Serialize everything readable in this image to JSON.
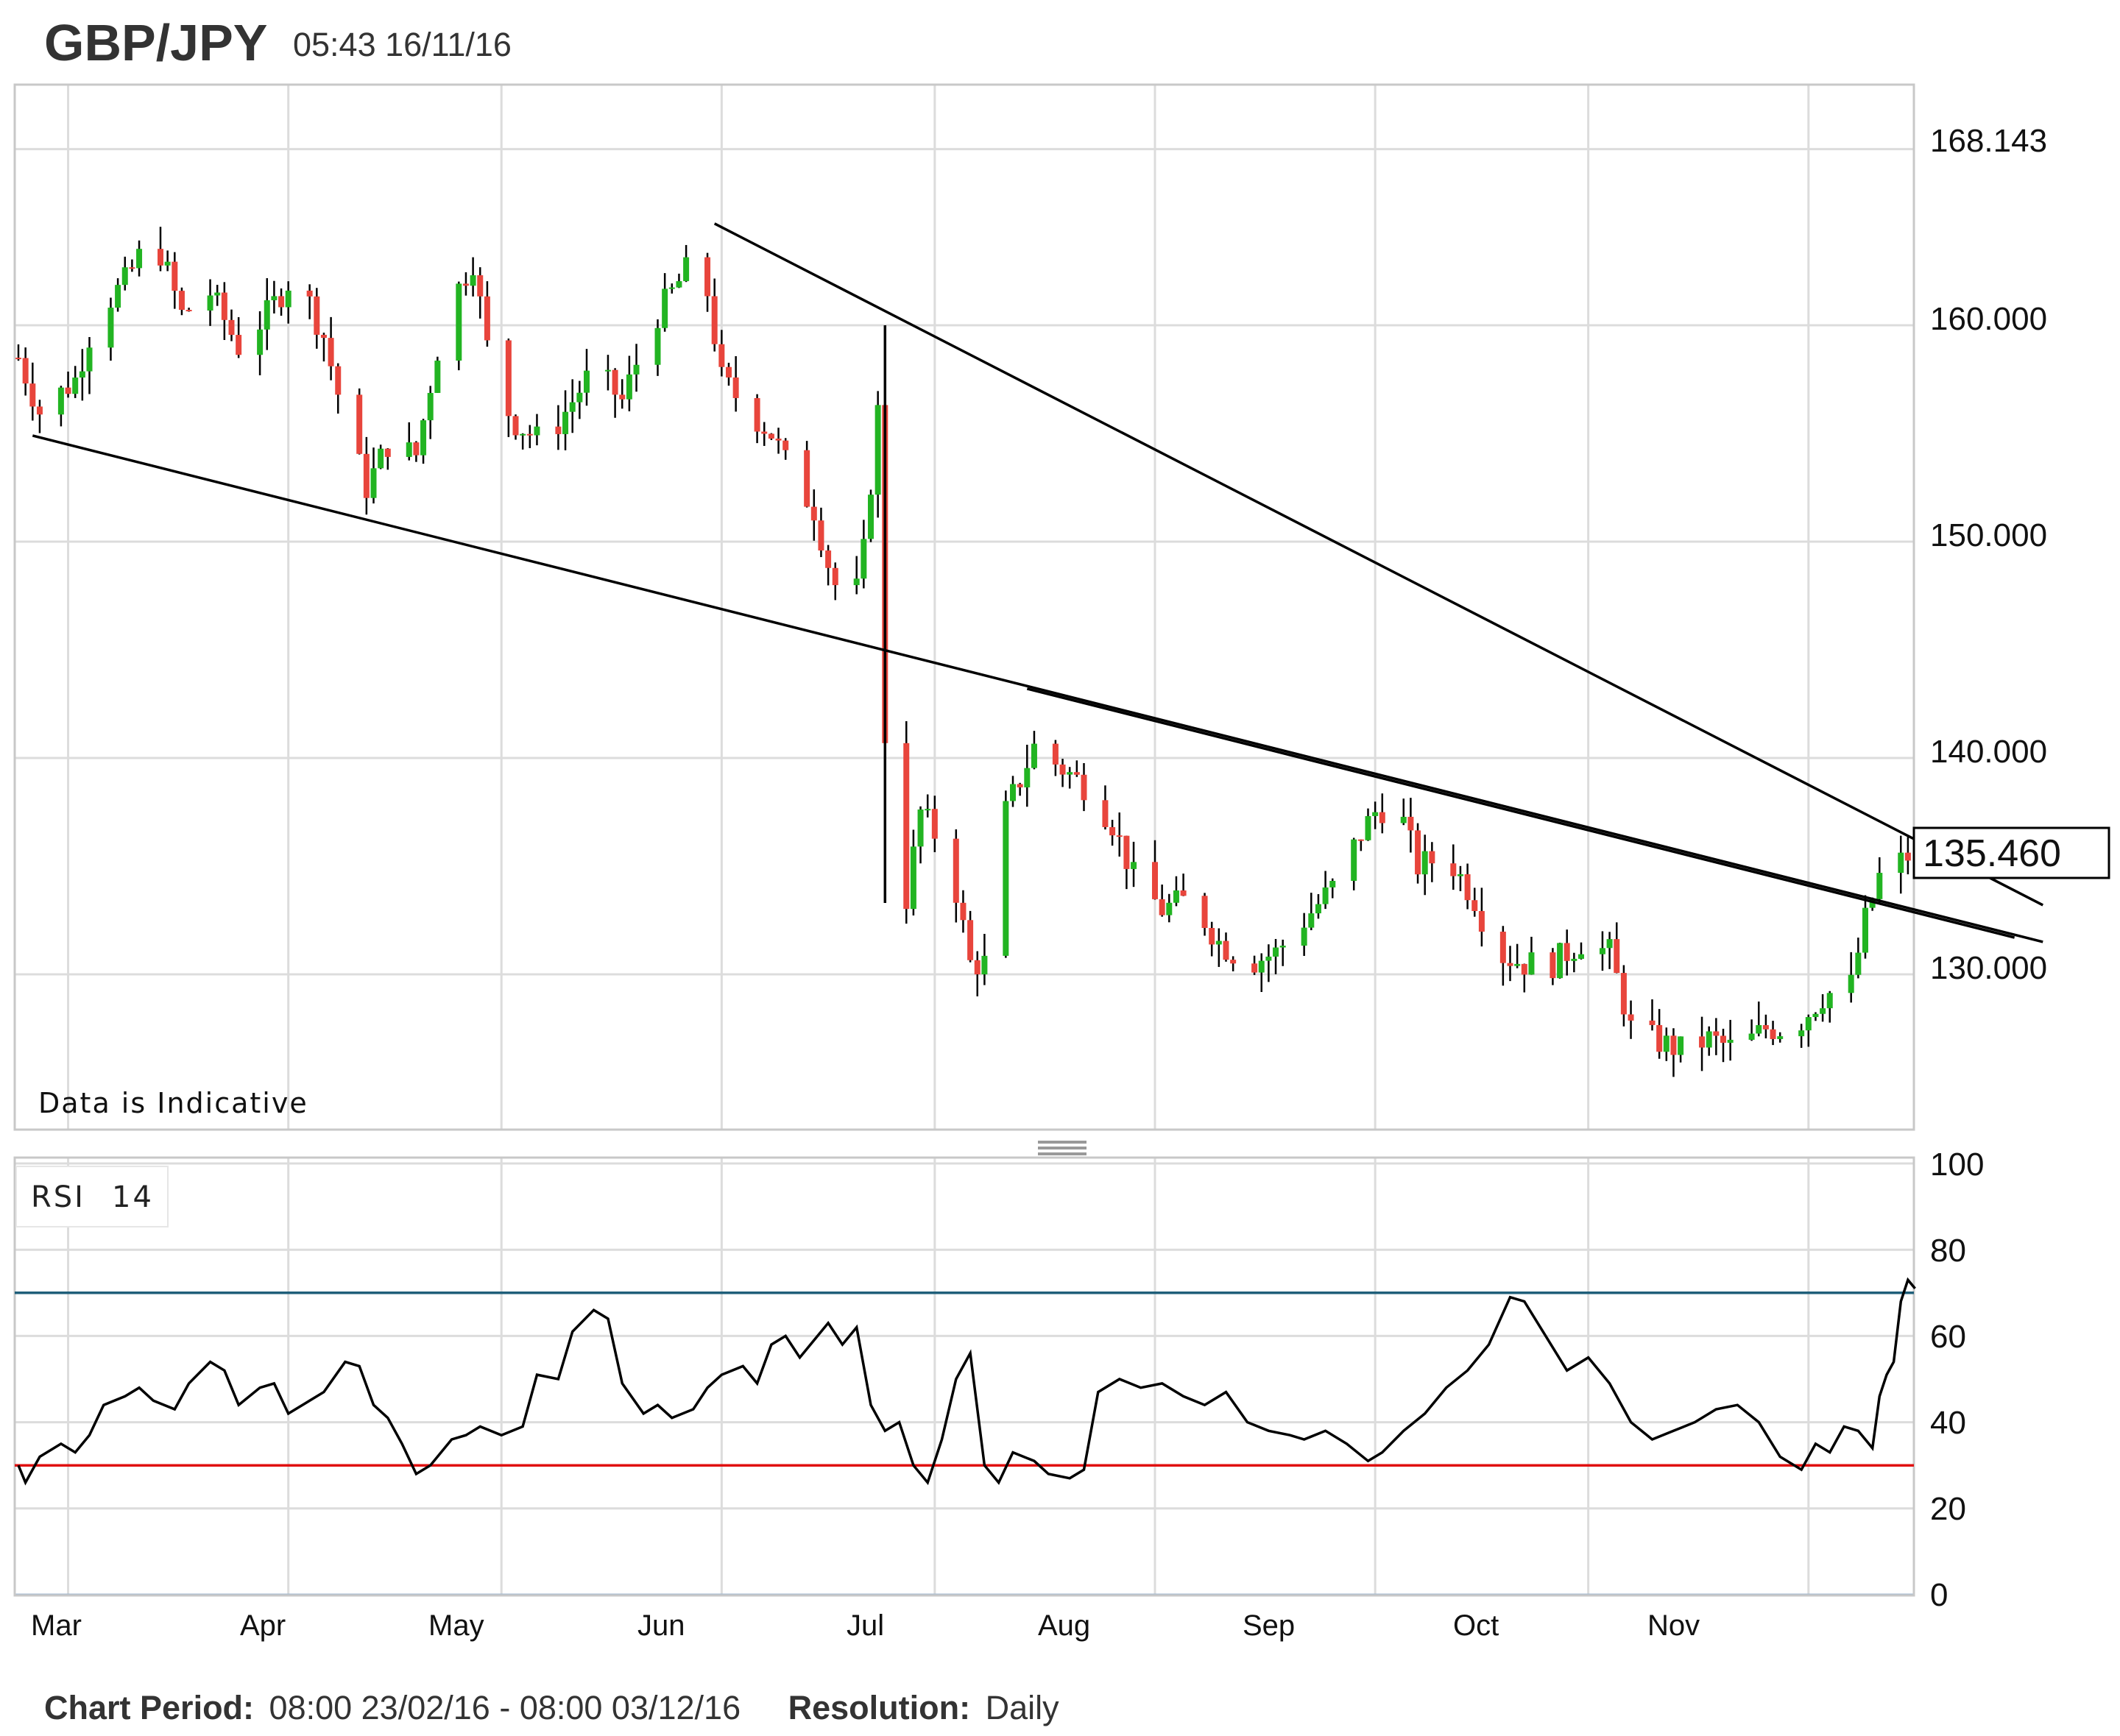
{
  "header": {
    "symbol": "GBP/JPY",
    "timestamp": "05:43 16/11/16"
  },
  "note": "Data is Indicative",
  "last_price": "135.460",
  "footer": {
    "period_label": "Chart Period:",
    "period_value": "08:00 23/02/16 - 08:00 03/12/16",
    "resolution_label": "Resolution:",
    "resolution_value": "Daily"
  },
  "rsi_panel": {
    "label": "RSI",
    "period": "14"
  },
  "colors": {
    "up": "#22b422",
    "down": "#e8453c",
    "grid": "#dcdcdc",
    "rsi_overbought_line": "#1f5f7a",
    "rsi_oversold_line": "#e01010",
    "trendline": "#000000"
  },
  "chart_data": [
    {
      "type": "candlestick",
      "title": "GBP/JPY",
      "months": [
        "Mar",
        "Apr",
        "May",
        "Jun",
        "Jul",
        "Aug",
        "Sep",
        "Oct",
        "Nov"
      ],
      "y_ticks": [
        "168.143",
        "160.000",
        "150.000",
        "140.000",
        "130.000"
      ],
      "ylim": [
        123.0,
        170.0
      ],
      "grid": true,
      "close_series": [
        {
          "d": "2016-02-23",
          "v": 158.5
        },
        {
          "d": "2016-02-26",
          "v": 156.0
        },
        {
          "d": "2016-03-02",
          "v": 157.5
        },
        {
          "d": "2016-03-05",
          "v": 160.5
        },
        {
          "d": "2016-03-09",
          "v": 162.0
        },
        {
          "d": "2016-03-13",
          "v": 164.3
        },
        {
          "d": "2016-03-17",
          "v": 160.5
        },
        {
          "d": "2016-03-21",
          "v": 161.5
        },
        {
          "d": "2016-03-25",
          "v": 159.0
        },
        {
          "d": "2016-03-29",
          "v": 160.5
        },
        {
          "d": "2016-04-02",
          "v": 162.5
        },
        {
          "d": "2016-04-06",
          "v": 159.5
        },
        {
          "d": "2016-04-09",
          "v": 155.5
        },
        {
          "d": "2016-04-12",
          "v": 152.5
        },
        {
          "d": "2016-04-15",
          "v": 154.5
        },
        {
          "d": "2016-04-19",
          "v": 154.0
        },
        {
          "d": "2016-04-23",
          "v": 160.5
        },
        {
          "d": "2016-04-27",
          "v": 163.0
        },
        {
          "d": "2016-04-30",
          "v": 157.0
        },
        {
          "d": "2016-05-03",
          "v": 155.5
        },
        {
          "d": "2016-05-07",
          "v": 154.5
        },
        {
          "d": "2016-05-11",
          "v": 156.5
        },
        {
          "d": "2016-05-14",
          "v": 158.0
        },
        {
          "d": "2016-05-18",
          "v": 156.5
        },
        {
          "d": "2016-05-22",
          "v": 160.0
        },
        {
          "d": "2016-05-26",
          "v": 162.0
        },
        {
          "d": "2016-05-29",
          "v": 163.5
        },
        {
          "d": "2016-06-01",
          "v": 157.5
        },
        {
          "d": "2016-06-05",
          "v": 156.0
        },
        {
          "d": "2016-06-08",
          "v": 155.0
        },
        {
          "d": "2016-06-11",
          "v": 153.0
        },
        {
          "d": "2016-06-14",
          "v": 151.5
        },
        {
          "d": "2016-06-16",
          "v": 149.0
        },
        {
          "d": "2016-06-19",
          "v": 146.0
        },
        {
          "d": "2016-06-21",
          "v": 149.5
        },
        {
          "d": "2016-06-23",
          "v": 156.0
        },
        {
          "d": "2016-06-24",
          "v": 141.0
        },
        {
          "d": "2016-06-27",
          "v": 133.5
        },
        {
          "d": "2016-06-29",
          "v": 137.5
        },
        {
          "d": "2016-07-03",
          "v": 135.5
        },
        {
          "d": "2016-07-06",
          "v": 130.5
        },
        {
          "d": "2016-07-08",
          "v": 130.5
        },
        {
          "d": "2016-07-11",
          "v": 137.5
        },
        {
          "d": "2016-07-15",
          "v": 140.5
        },
        {
          "d": "2016-07-19",
          "v": 139.5
        },
        {
          "d": "2016-07-23",
          "v": 138.5
        },
        {
          "d": "2016-07-26",
          "v": 137.0
        },
        {
          "d": "2016-07-29",
          "v": 134.5
        },
        {
          "d": "2016-08-02",
          "v": 133.0
        },
        {
          "d": "2016-08-06",
          "v": 133.5
        },
        {
          "d": "2016-08-10",
          "v": 131.5
        },
        {
          "d": "2016-08-14",
          "v": 130.5
        },
        {
          "d": "2016-08-18",
          "v": 131.0
        },
        {
          "d": "2016-08-22",
          "v": 132.5
        },
        {
          "d": "2016-08-26",
          "v": 134.0
        },
        {
          "d": "2016-08-30",
          "v": 136.5
        },
        {
          "d": "2016-09-01",
          "v": 137.5
        },
        {
          "d": "2016-09-04",
          "v": 138.0
        },
        {
          "d": "2016-09-07",
          "v": 135.0
        },
        {
          "d": "2016-09-11",
          "v": 135.5
        },
        {
          "d": "2016-09-15",
          "v": 133.5
        },
        {
          "d": "2016-09-18",
          "v": 131.0
        },
        {
          "d": "2016-09-22",
          "v": 130.5
        },
        {
          "d": "2016-09-26",
          "v": 130.5
        },
        {
          "d": "2016-09-30",
          "v": 131.5
        },
        {
          "d": "2016-10-04",
          "v": 131.0
        },
        {
          "d": "2016-10-07",
          "v": 127.5
        },
        {
          "d": "2016-10-10",
          "v": 127.0
        },
        {
          "d": "2016-10-14",
          "v": 126.5
        },
        {
          "d": "2016-10-18",
          "v": 127.0
        },
        {
          "d": "2016-10-22",
          "v": 126.5
        },
        {
          "d": "2016-10-26",
          "v": 127.5
        },
        {
          "d": "2016-10-30",
          "v": 127.5
        },
        {
          "d": "2016-11-03",
          "v": 129.0
        },
        {
          "d": "2016-11-07",
          "v": 129.5
        },
        {
          "d": "2016-11-09",
          "v": 132.5
        },
        {
          "d": "2016-11-11",
          "v": 134.5
        },
        {
          "d": "2016-11-15",
          "v": 135.46
        }
      ],
      "trendlines": [
        {
          "from": {
            "d": "2016-05-31",
            "v": 164.7
          },
          "to": {
            "d": "2016-12-04",
            "v": 133.2
          }
        },
        {
          "from": {
            "d": "2016-02-25",
            "v": 154.9
          },
          "to": {
            "d": "2016-12-04",
            "v": 131.5
          }
        },
        {
          "from": {
            "d": "2016-07-14",
            "v": 143.2
          },
          "to": {
            "d": "2016-11-30",
            "v": 131.7
          }
        },
        {
          "from": {
            "d": "2016-06-24",
            "v": 160.0
          },
          "to": {
            "d": "2016-06-24",
            "v": 133.3
          }
        }
      ]
    },
    {
      "type": "line",
      "title": "RSI 14",
      "y_ticks": [
        "100",
        "80",
        "60",
        "40",
        "20",
        "0"
      ],
      "ylim": [
        0,
        100
      ],
      "reference_lines": [
        70,
        30
      ],
      "series": [
        {
          "d": "2016-02-23",
          "v": 30
        },
        {
          "d": "2016-02-24",
          "v": 26
        },
        {
          "d": "2016-02-26",
          "v": 32
        },
        {
          "d": "2016-02-29",
          "v": 35
        },
        {
          "d": "2016-03-02",
          "v": 33
        },
        {
          "d": "2016-03-04",
          "v": 37
        },
        {
          "d": "2016-03-06",
          "v": 44
        },
        {
          "d": "2016-03-09",
          "v": 46
        },
        {
          "d": "2016-03-11",
          "v": 48
        },
        {
          "d": "2016-03-13",
          "v": 45
        },
        {
          "d": "2016-03-16",
          "v": 43
        },
        {
          "d": "2016-03-18",
          "v": 49
        },
        {
          "d": "2016-03-21",
          "v": 54
        },
        {
          "d": "2016-03-23",
          "v": 52
        },
        {
          "d": "2016-03-25",
          "v": 44
        },
        {
          "d": "2016-03-28",
          "v": 48
        },
        {
          "d": "2016-03-30",
          "v": 49
        },
        {
          "d": "2016-04-01",
          "v": 42
        },
        {
          "d": "2016-04-04",
          "v": 45
        },
        {
          "d": "2016-04-06",
          "v": 47
        },
        {
          "d": "2016-04-09",
          "v": 54
        },
        {
          "d": "2016-04-11",
          "v": 53
        },
        {
          "d": "2016-04-13",
          "v": 44
        },
        {
          "d": "2016-04-15",
          "v": 41
        },
        {
          "d": "2016-04-17",
          "v": 35
        },
        {
          "d": "2016-04-19",
          "v": 28
        },
        {
          "d": "2016-04-21",
          "v": 30
        },
        {
          "d": "2016-04-24",
          "v": 36
        },
        {
          "d": "2016-04-26",
          "v": 37
        },
        {
          "d": "2016-04-28",
          "v": 39
        },
        {
          "d": "2016-05-01",
          "v": 37
        },
        {
          "d": "2016-05-04",
          "v": 39
        },
        {
          "d": "2016-05-06",
          "v": 51
        },
        {
          "d": "2016-05-09",
          "v": 50
        },
        {
          "d": "2016-05-11",
          "v": 61
        },
        {
          "d": "2016-05-14",
          "v": 66
        },
        {
          "d": "2016-05-16",
          "v": 64
        },
        {
          "d": "2016-05-18",
          "v": 49
        },
        {
          "d": "2016-05-21",
          "v": 42
        },
        {
          "d": "2016-05-23",
          "v": 44
        },
        {
          "d": "2016-05-25",
          "v": 41
        },
        {
          "d": "2016-05-28",
          "v": 43
        },
        {
          "d": "2016-05-30",
          "v": 48
        },
        {
          "d": "2016-06-01",
          "v": 51
        },
        {
          "d": "2016-06-04",
          "v": 53
        },
        {
          "d": "2016-06-06",
          "v": 49
        },
        {
          "d": "2016-06-08",
          "v": 58
        },
        {
          "d": "2016-06-10",
          "v": 60
        },
        {
          "d": "2016-06-12",
          "v": 55
        },
        {
          "d": "2016-06-14",
          "v": 59
        },
        {
          "d": "2016-06-16",
          "v": 63
        },
        {
          "d": "2016-06-18",
          "v": 58
        },
        {
          "d": "2016-06-20",
          "v": 62
        },
        {
          "d": "2016-06-22",
          "v": 44
        },
        {
          "d": "2016-06-24",
          "v": 38
        },
        {
          "d": "2016-06-26",
          "v": 40
        },
        {
          "d": "2016-06-28",
          "v": 30
        },
        {
          "d": "2016-06-30",
          "v": 26
        },
        {
          "d": "2016-07-02",
          "v": 36
        },
        {
          "d": "2016-07-04",
          "v": 50
        },
        {
          "d": "2016-07-06",
          "v": 56
        },
        {
          "d": "2016-07-08",
          "v": 30
        },
        {
          "d": "2016-07-10",
          "v": 26
        },
        {
          "d": "2016-07-12",
          "v": 33
        },
        {
          "d": "2016-07-15",
          "v": 31
        },
        {
          "d": "2016-07-17",
          "v": 28
        },
        {
          "d": "2016-07-20",
          "v": 27
        },
        {
          "d": "2016-07-22",
          "v": 29
        },
        {
          "d": "2016-07-24",
          "v": 47
        },
        {
          "d": "2016-07-27",
          "v": 50
        },
        {
          "d": "2016-07-30",
          "v": 48
        },
        {
          "d": "2016-08-02",
          "v": 49
        },
        {
          "d": "2016-08-05",
          "v": 46
        },
        {
          "d": "2016-08-08",
          "v": 44
        },
        {
          "d": "2016-08-11",
          "v": 47
        },
        {
          "d": "2016-08-14",
          "v": 40
        },
        {
          "d": "2016-08-17",
          "v": 38
        },
        {
          "d": "2016-08-20",
          "v": 37
        },
        {
          "d": "2016-08-22",
          "v": 36
        },
        {
          "d": "2016-08-25",
          "v": 38
        },
        {
          "d": "2016-08-28",
          "v": 35
        },
        {
          "d": "2016-08-31",
          "v": 31
        },
        {
          "d": "2016-09-02",
          "v": 33
        },
        {
          "d": "2016-09-05",
          "v": 38
        },
        {
          "d": "2016-09-08",
          "v": 42
        },
        {
          "d": "2016-09-11",
          "v": 48
        },
        {
          "d": "2016-09-14",
          "v": 52
        },
        {
          "d": "2016-09-17",
          "v": 58
        },
        {
          "d": "2016-09-20",
          "v": 69
        },
        {
          "d": "2016-09-22",
          "v": 68
        },
        {
          "d": "2016-09-25",
          "v": 60
        },
        {
          "d": "2016-09-28",
          "v": 52
        },
        {
          "d": "2016-10-01",
          "v": 55
        },
        {
          "d": "2016-10-04",
          "v": 49
        },
        {
          "d": "2016-10-07",
          "v": 40
        },
        {
          "d": "2016-10-10",
          "v": 36
        },
        {
          "d": "2016-10-13",
          "v": 38
        },
        {
          "d": "2016-10-16",
          "v": 40
        },
        {
          "d": "2016-10-19",
          "v": 43
        },
        {
          "d": "2016-10-22",
          "v": 44
        },
        {
          "d": "2016-10-25",
          "v": 40
        },
        {
          "d": "2016-10-28",
          "v": 32
        },
        {
          "d": "2016-10-31",
          "v": 29
        },
        {
          "d": "2016-11-02",
          "v": 35
        },
        {
          "d": "2016-11-04",
          "v": 33
        },
        {
          "d": "2016-11-06",
          "v": 39
        },
        {
          "d": "2016-11-08",
          "v": 38
        },
        {
          "d": "2016-11-10",
          "v": 34
        },
        {
          "d": "2016-11-11",
          "v": 46
        },
        {
          "d": "2016-11-12",
          "v": 51
        },
        {
          "d": "2016-11-13",
          "v": 54
        },
        {
          "d": "2016-11-14",
          "v": 68
        },
        {
          "d": "2016-11-15",
          "v": 73
        },
        {
          "d": "2016-11-16",
          "v": 71
        }
      ]
    }
  ]
}
